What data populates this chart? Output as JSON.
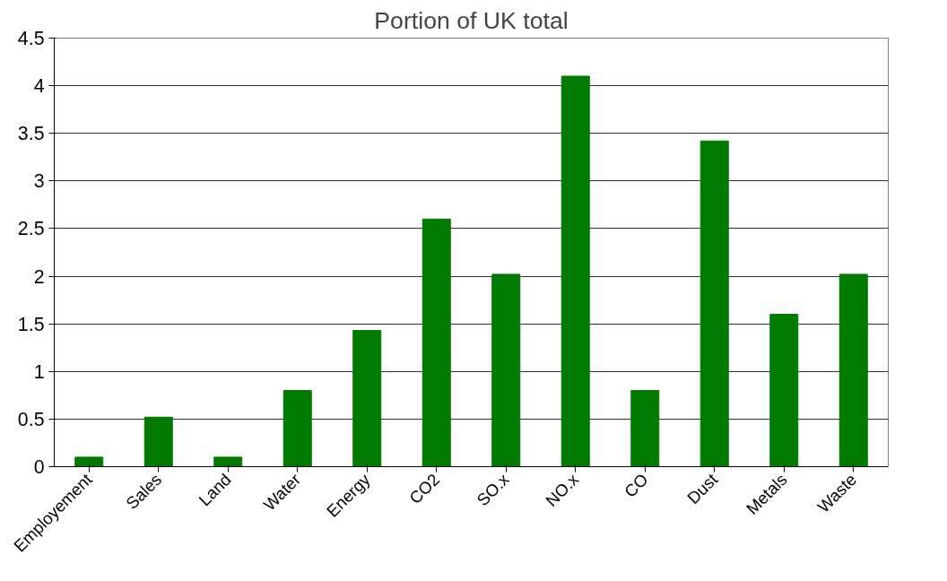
{
  "chart_data": {
    "type": "bar",
    "title": "Portion of UK total",
    "categories": [
      "Employement",
      "Sales",
      "Land",
      "Water",
      "Energy",
      "CO2",
      "SO.x",
      "NO.x",
      "CO",
      "Dust",
      "Metals",
      "Waste"
    ],
    "values": [
      0.1,
      0.52,
      0.1,
      0.8,
      1.43,
      2.6,
      2.02,
      4.1,
      0.8,
      3.42,
      1.6,
      2.02
    ],
    "color": "#007a00",
    "ylim": [
      0,
      4.5
    ],
    "yticks": [
      0,
      0.5,
      1,
      1.5,
      2,
      2.5,
      3,
      3.5,
      4,
      4.5
    ],
    "grid": "y"
  }
}
